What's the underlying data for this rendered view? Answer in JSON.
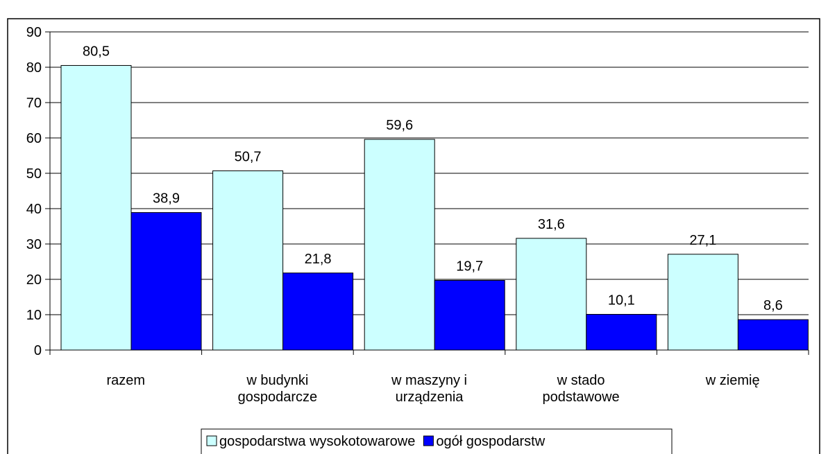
{
  "chart_data": {
    "type": "bar",
    "categories": [
      "razem",
      "w budynki\ngospodarcze",
      "w maszyny i\nurządzenia",
      "w stado\npodstawowe",
      "w ziemię"
    ],
    "series": [
      {
        "name": "gospodarstwa wysokotowarowe",
        "color": "#ccffff",
        "values": [
          80.5,
          50.7,
          59.6,
          31.6,
          27.1
        ],
        "value_labels": [
          "80,5",
          "50,7",
          "59,6",
          "31,6",
          "27,1"
        ]
      },
      {
        "name": "ogół gospodarstw",
        "color": "#0000ff",
        "values": [
          38.9,
          21.8,
          19.7,
          10.1,
          8.6
        ],
        "value_labels": [
          "38,9",
          "21,8",
          "19,7",
          "10,1",
          "8,6"
        ]
      }
    ],
    "ylim": [
      0,
      90
    ],
    "yticks": [
      0,
      10,
      20,
      30,
      40,
      50,
      60,
      70,
      80,
      90
    ],
    "grid": true,
    "legend": "bottom"
  }
}
